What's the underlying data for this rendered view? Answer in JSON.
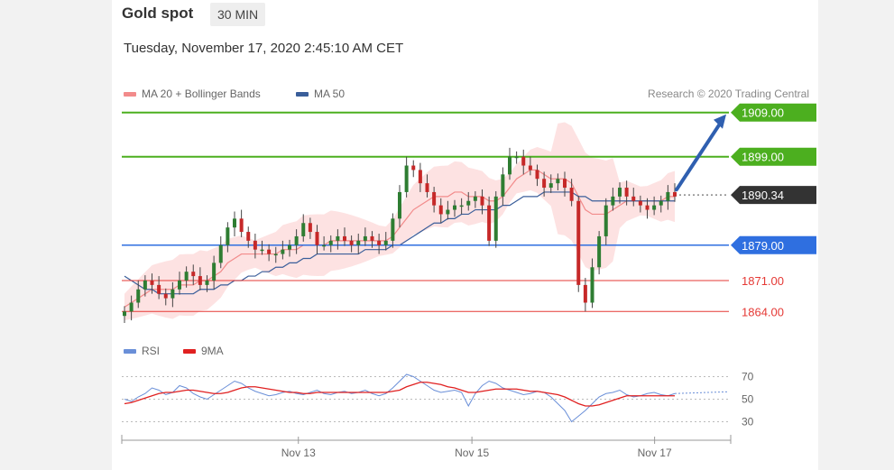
{
  "header": {
    "title": "Gold spot",
    "timeframe": "30 MIN",
    "datetime": "Tuesday, November 17, 2020 2:45:10 AM CET"
  },
  "legend": {
    "items": [
      {
        "label": "MA 20 + Bollinger Bands",
        "color": "#f28b8b"
      },
      {
        "label": "MA 50",
        "color": "#3a5e9a"
      }
    ],
    "credit": "Research © 2020 Trading Central"
  },
  "rsi_legend": {
    "items": [
      {
        "label": "RSI",
        "color": "#6a8fd8"
      },
      {
        "label": "9MA",
        "color": "#e02020"
      }
    ]
  },
  "chart_data": [
    {
      "type": "candlestick",
      "ylim": [
        1861,
        1912
      ],
      "levels": [
        {
          "value": 1909.0,
          "label": "1909.00",
          "kind": "resistance",
          "color": "#4caf1f"
        },
        {
          "value": 1899.0,
          "label": "1899.00",
          "kind": "resistance",
          "color": "#4caf1f"
        },
        {
          "value": 1890.34,
          "label": "1890.34",
          "kind": "last",
          "color": "#333333"
        },
        {
          "value": 1879.0,
          "label": "1879.00",
          "kind": "pivot",
          "color": "#2f6fe0"
        },
        {
          "value": 1871.0,
          "label": "1871.00",
          "kind": "support",
          "color": "#e53935"
        },
        {
          "value": 1864.0,
          "label": "1864.00",
          "kind": "support",
          "color": "#e53935"
        }
      ],
      "x_ticks": [
        {
          "label": "Nov 13",
          "pos": 0.29
        },
        {
          "label": "Nov 15",
          "pos": 0.575
        },
        {
          "label": "Nov 17",
          "pos": 0.875
        }
      ],
      "close_path": [
        1864,
        1866,
        1869,
        1871,
        1870,
        1868,
        1867,
        1869,
        1871,
        1873,
        1872,
        1870,
        1871,
        1875,
        1879,
        1883,
        1885,
        1882,
        1880,
        1878,
        1878,
        1877,
        1877,
        1878,
        1879,
        1881,
        1884,
        1882,
        1879,
        1879,
        1880,
        1881,
        1880,
        1879,
        1880,
        1881,
        1880,
        1879,
        1880,
        1885,
        1891,
        1897,
        1896,
        1893,
        1891,
        1888,
        1886,
        1887,
        1888,
        1888,
        1889,
        1890,
        1888,
        1880,
        1890,
        1895,
        1899,
        1899,
        1897,
        1896,
        1894,
        1892,
        1893,
        1894,
        1892,
        1889,
        1870,
        1866,
        1874,
        1881,
        1888,
        1890,
        1892,
        1890,
        1889,
        1888,
        1887,
        1888,
        1889,
        1891,
        1890
      ],
      "ma20": [
        1865,
        1866,
        1867,
        1868,
        1869,
        1869,
        1869,
        1869,
        1870,
        1870,
        1870,
        1871,
        1871,
        1872,
        1873,
        1875,
        1876,
        1877,
        1877,
        1877,
        1877,
        1877,
        1877,
        1878,
        1878,
        1878,
        1879,
        1879,
        1879,
        1879,
        1880,
        1880,
        1880,
        1880,
        1880,
        1880,
        1880,
        1880,
        1880,
        1881,
        1883,
        1885,
        1887,
        1888,
        1889,
        1890,
        1890,
        1890,
        1891,
        1891,
        1890,
        1890,
        1890,
        1889,
        1889,
        1890,
        1892,
        1894,
        1895,
        1896,
        1896,
        1895,
        1894,
        1894,
        1894,
        1893,
        1890,
        1887,
        1886,
        1886,
        1886,
        1887,
        1888,
        1889,
        1889,
        1889,
        1889,
        1889,
        1889,
        1890,
        1890
      ],
      "ma50": [
        1872,
        1871,
        1870,
        1869,
        1869,
        1868,
        1868,
        1868,
        1868,
        1868,
        1868,
        1869,
        1869,
        1869,
        1870,
        1870,
        1871,
        1871,
        1872,
        1872,
        1873,
        1873,
        1874,
        1874,
        1875,
        1875,
        1876,
        1876,
        1877,
        1877,
        1877,
        1877,
        1877,
        1877,
        1877,
        1878,
        1878,
        1878,
        1878,
        1879,
        1879,
        1880,
        1881,
        1882,
        1883,
        1884,
        1884,
        1885,
        1885,
        1886,
        1886,
        1887,
        1887,
        1887,
        1887,
        1888,
        1888,
        1889,
        1890,
        1890,
        1890,
        1891,
        1891,
        1891,
        1891,
        1891,
        1890,
        1890,
        1889,
        1889,
        1889,
        1889,
        1889,
        1889,
        1889,
        1889,
        1889,
        1889,
        1889,
        1889,
        1889
      ]
    },
    {
      "type": "line",
      "name": "RSI",
      "ylim": [
        20,
        80
      ],
      "y_ticks": [
        {
          "value": 70,
          "label": "70"
        },
        {
          "value": 50,
          "label": "50"
        },
        {
          "value": 30,
          "label": "30"
        }
      ],
      "series": [
        {
          "name": "RSI",
          "color": "#6a8fd8",
          "values": [
            50,
            48,
            52,
            55,
            60,
            58,
            54,
            56,
            62,
            60,
            55,
            52,
            50,
            54,
            58,
            62,
            66,
            64,
            60,
            57,
            55,
            53,
            54,
            56,
            57,
            55,
            54,
            56,
            58,
            55,
            54,
            56,
            57,
            55,
            56,
            58,
            55,
            53,
            55,
            60,
            66,
            72,
            70,
            66,
            62,
            58,
            56,
            57,
            58,
            56,
            44,
            55,
            62,
            66,
            64,
            60,
            58,
            56,
            54,
            55,
            57,
            56,
            52,
            46,
            40,
            30,
            35,
            40,
            46,
            52,
            55,
            56,
            58,
            54,
            52,
            53,
            55,
            56,
            54,
            53,
            55
          ]
        },
        {
          "name": "9MA",
          "color": "#e02020",
          "values": [
            46,
            47,
            49,
            51,
            53,
            55,
            56,
            56,
            57,
            58,
            58,
            57,
            56,
            55,
            55,
            56,
            58,
            60,
            61,
            61,
            60,
            59,
            58,
            57,
            56,
            56,
            55,
            55,
            56,
            56,
            56,
            56,
            56,
            56,
            56,
            56,
            56,
            56,
            56,
            57,
            58,
            61,
            63,
            65,
            65,
            64,
            63,
            61,
            60,
            58,
            56,
            56,
            57,
            58,
            59,
            59,
            59,
            59,
            58,
            57,
            57,
            56,
            55,
            54,
            52,
            49,
            46,
            44,
            44,
            45,
            47,
            49,
            51,
            53,
            53,
            53,
            53,
            53,
            53,
            53,
            53
          ]
        }
      ]
    }
  ]
}
